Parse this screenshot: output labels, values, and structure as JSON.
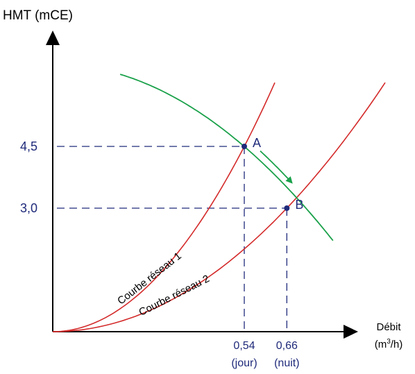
{
  "chart_data": {
    "type": "line",
    "ylabel": "HMT (mCE)",
    "xlabel_line1": "Débit",
    "xlabel_line2_prefix": "(m",
    "xlabel_line2_sup": "3",
    "xlabel_line2_suffix": "/h)",
    "colors": {
      "axis": "#000000",
      "network_curve": "#d42a2a",
      "pump_curve": "#1aa14a",
      "point": "#1f2a7a",
      "guide": "#1f2a7a",
      "tick_text": "#1f2a7a",
      "curve_label": "#000000"
    },
    "curves": [
      {
        "name": "Courbe réseau 1",
        "kind": "network",
        "k": 15.432
      },
      {
        "name": "Courbe réseau 2",
        "kind": "network",
        "k": 6.887
      },
      {
        "name": "",
        "kind": "pump",
        "h0": 6.5,
        "c": 6.868
      }
    ],
    "points": [
      {
        "label": "A",
        "x": 0.54,
        "y": 4.5,
        "x_tick": "0,54",
        "x_sub": "(jour)",
        "y_tick": "4,5"
      },
      {
        "label": "B",
        "x": 0.66,
        "y": 3.0,
        "x_tick": "0,66",
        "x_sub": "(nuit)",
        "y_tick": "3,0"
      }
    ]
  }
}
